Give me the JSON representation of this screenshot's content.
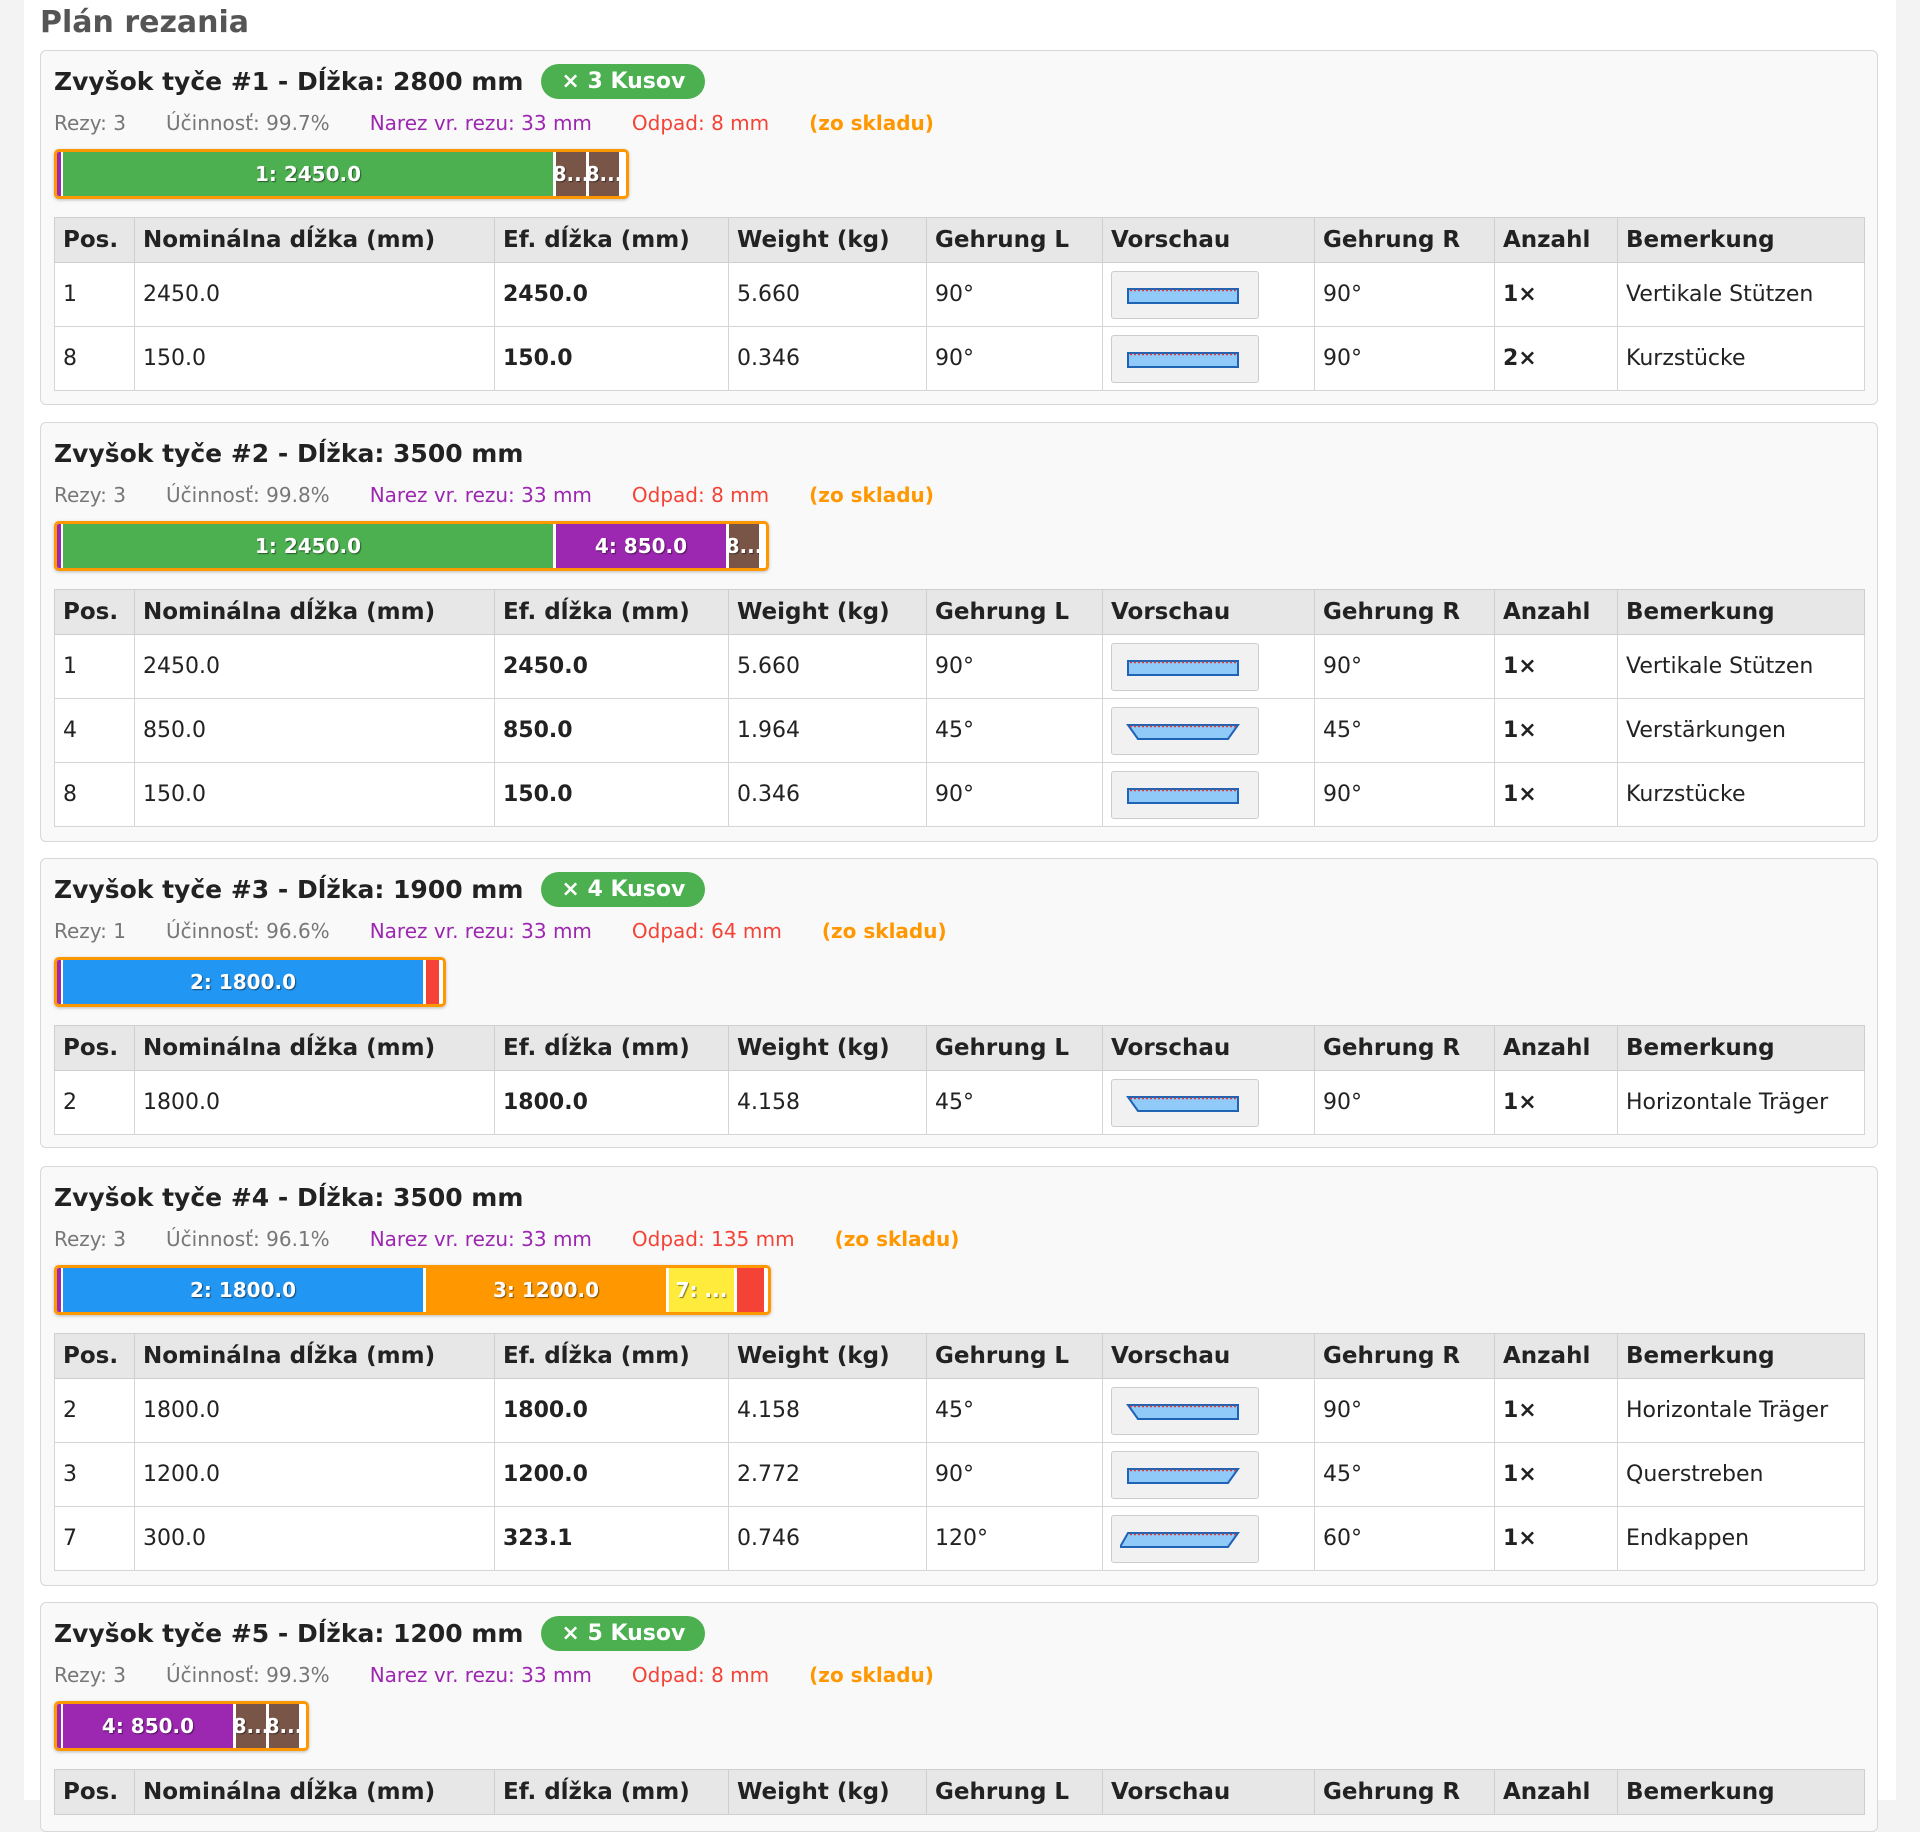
{
  "title": "Plán rezania",
  "columns": [
    "Pos.",
    "Nominálna dĺžka (mm)",
    "Ef. dĺžka (mm)",
    "Weight (kg)",
    "Gehrung L",
    "Vorschau",
    "Gehrung R",
    "Anzahl",
    "Bemerkung"
  ],
  "colors": {
    "green": "#4caf50",
    "blue": "#2196f3",
    "purple": "#9c27b0",
    "brown": "#795548",
    "orange": "#ff9800",
    "yellow": "#ffeb3b",
    "waste": "#f44336",
    "bar_border": "#ff9800"
  },
  "bars": [
    {
      "title": "Zvyšok tyče #1 - Dĺžka: 2800 mm",
      "qty_badge": "× 3 Kusov",
      "stats": {
        "rezy": "Rezy: 3",
        "efficiency": "Účinnosť: 99.7%",
        "narez": "Narez vr. rezu: 33 mm",
        "odpad": "Odpad: 8 mm",
        "sklad": "(zo skladu)"
      },
      "length_mm": 2800,
      "segments": [
        {
          "label": "1: 2450.0",
          "color": "green",
          "length_mm": 2450
        },
        {
          "label": "8...",
          "color": "brown",
          "length_mm": 150
        },
        {
          "label": "8...",
          "color": "brown",
          "length_mm": 150
        }
      ],
      "waste_mm": 8,
      "rows": [
        {
          "pos": "1",
          "nominal": "2450.0",
          "eff": "2450.0",
          "weight": "5.660",
          "gl": "90°",
          "gr": "90°",
          "count": "1×",
          "note": "Vertikale Stützen",
          "angle_l": 90,
          "angle_r": 90
        },
        {
          "pos": "8",
          "nominal": "150.0",
          "eff": "150.0",
          "weight": "0.346",
          "gl": "90°",
          "gr": "90°",
          "count": "2×",
          "note": "Kurzstücke",
          "angle_l": 90,
          "angle_r": 90
        }
      ]
    },
    {
      "title": "Zvyšok tyče #2 - Dĺžka: 3500 mm",
      "qty_badge": "",
      "stats": {
        "rezy": "Rezy: 3",
        "efficiency": "Účinnosť: 99.8%",
        "narez": "Narez vr. rezu: 33 mm",
        "odpad": "Odpad: 8 mm",
        "sklad": "(zo skladu)"
      },
      "length_mm": 3500,
      "segments": [
        {
          "label": "1: 2450.0",
          "color": "green",
          "length_mm": 2450
        },
        {
          "label": "4: 850.0",
          "color": "purple",
          "length_mm": 850
        },
        {
          "label": "8...",
          "color": "brown",
          "length_mm": 150
        }
      ],
      "waste_mm": 8,
      "rows": [
        {
          "pos": "1",
          "nominal": "2450.0",
          "eff": "2450.0",
          "weight": "5.660",
          "gl": "90°",
          "gr": "90°",
          "count": "1×",
          "note": "Vertikale Stützen",
          "angle_l": 90,
          "angle_r": 90
        },
        {
          "pos": "4",
          "nominal": "850.0",
          "eff": "850.0",
          "weight": "1.964",
          "gl": "45°",
          "gr": "45°",
          "count": "1×",
          "note": "Verstärkungen",
          "angle_l": 45,
          "angle_r": 45
        },
        {
          "pos": "8",
          "nominal": "150.0",
          "eff": "150.0",
          "weight": "0.346",
          "gl": "90°",
          "gr": "90°",
          "count": "1×",
          "note": "Kurzstücke",
          "angle_l": 90,
          "angle_r": 90
        }
      ]
    },
    {
      "title": "Zvyšok tyče #3 - Dĺžka: 1900 mm",
      "qty_badge": "× 4 Kusov",
      "stats": {
        "rezy": "Rezy: 1",
        "efficiency": "Účinnosť: 96.6%",
        "narez": "Narez vr. rezu: 33 mm",
        "odpad": "Odpad: 64 mm",
        "sklad": "(zo skladu)"
      },
      "length_mm": 1900,
      "segments": [
        {
          "label": "2: 1800.0",
          "color": "blue",
          "length_mm": 1800
        }
      ],
      "waste_mm": 64,
      "rows": [
        {
          "pos": "2",
          "nominal": "1800.0",
          "eff": "1800.0",
          "weight": "4.158",
          "gl": "45°",
          "gr": "90°",
          "count": "1×",
          "note": "Horizontale Träger",
          "angle_l": 45,
          "angle_r": 90
        }
      ]
    },
    {
      "title": "Zvyšok tyče #4 - Dĺžka: 3500 mm",
      "qty_badge": "",
      "stats": {
        "rezy": "Rezy: 3",
        "efficiency": "Účinnosť: 96.1%",
        "narez": "Narez vr. rezu: 33 mm",
        "odpad": "Odpad: 135 mm",
        "sklad": "(zo skladu)"
      },
      "length_mm": 3500,
      "segments": [
        {
          "label": "2: 1800.0",
          "color": "blue",
          "length_mm": 1800
        },
        {
          "label": "3: 1200.0",
          "color": "orange",
          "length_mm": 1200
        },
        {
          "label": "7: ...",
          "color": "yellow",
          "length_mm": 323.1
        }
      ],
      "waste_mm": 135,
      "rows": [
        {
          "pos": "2",
          "nominal": "1800.0",
          "eff": "1800.0",
          "weight": "4.158",
          "gl": "45°",
          "gr": "90°",
          "count": "1×",
          "note": "Horizontale Träger",
          "angle_l": 45,
          "angle_r": 90
        },
        {
          "pos": "3",
          "nominal": "1200.0",
          "eff": "1200.0",
          "weight": "2.772",
          "gl": "90°",
          "gr": "45°",
          "count": "1×",
          "note": "Querstreben",
          "angle_l": 90,
          "angle_r": 45
        },
        {
          "pos": "7",
          "nominal": "300.0",
          "eff": "323.1",
          "weight": "0.746",
          "gl": "120°",
          "gr": "60°",
          "count": "1×",
          "note": "Endkappen",
          "angle_l": 120,
          "angle_r": 60
        }
      ]
    },
    {
      "title": "Zvyšok tyče #5 - Dĺžka: 1200 mm",
      "qty_badge": "× 5 Kusov",
      "stats": {
        "rezy": "Rezy: 3",
        "efficiency": "Účinnosť: 99.3%",
        "narez": "Narez vr. rezu: 33 mm",
        "odpad": "Odpad: 8 mm",
        "sklad": "(zo skladu)"
      },
      "length_mm": 1200,
      "segments": [
        {
          "label": "4: 850.0",
          "color": "purple",
          "length_mm": 850
        },
        {
          "label": "8...",
          "color": "brown",
          "length_mm": 150
        },
        {
          "label": "8...",
          "color": "brown",
          "length_mm": 150
        }
      ],
      "waste_mm": 8,
      "rows": []
    }
  ]
}
